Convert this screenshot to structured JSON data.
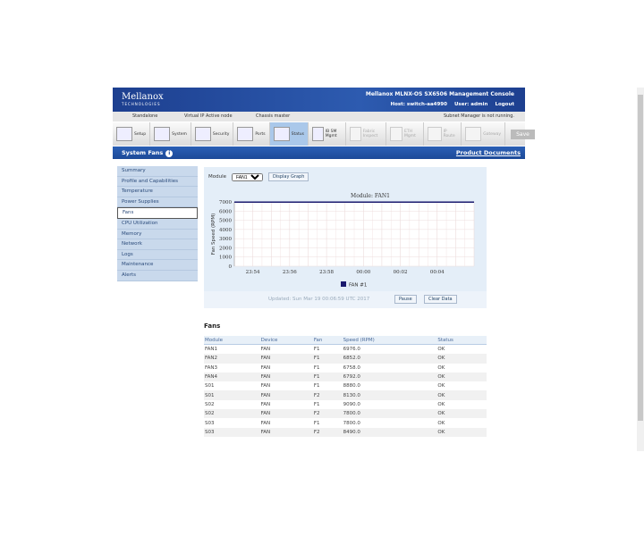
{
  "header": {
    "logo": "Mellanox",
    "logo_sub": "TECHNOLOGIES",
    "console_title": "Mellanox MLNX-OS SX6506 Management Console",
    "host": "Host: switch-aa4990",
    "user": "User: admin",
    "logout": "Logout"
  },
  "status_bar": {
    "standalone": "Standalone",
    "vip": "Virtual IP Active node",
    "chassis": "Chassis master",
    "subnet": "Subnet Manager is not running."
  },
  "toolbar": {
    "items": [
      {
        "label": "Setup"
      },
      {
        "label": "System"
      },
      {
        "label": "Security"
      },
      {
        "label": "Ports"
      },
      {
        "label": "Status",
        "active": true
      },
      {
        "label": "IB SM Mgmt"
      },
      {
        "label": "Fabric Inspect",
        "disabled": true
      },
      {
        "label": "ETH Mgmt",
        "disabled": true
      },
      {
        "label": "IP Route",
        "disabled": true
      },
      {
        "label": "Gateway",
        "disabled": true
      }
    ],
    "save": "Save"
  },
  "page": {
    "title": "System Fans",
    "product_docs": "Product Documents"
  },
  "sidebar": {
    "items": [
      "Summary",
      "Profile and Capabilities",
      "Temperature",
      "Power Supplies",
      "Fans",
      "CPU Utilization",
      "Memory",
      "Network",
      "Logs",
      "Maintenance",
      "Alerts"
    ],
    "selected": "Fans"
  },
  "graph": {
    "module_label": "Module",
    "module_value": "FAN1",
    "display_graph": "Display Graph",
    "updated": "Updated: Sun Mar 19 00:06:59 UTC 2017",
    "pause": "Pause",
    "clear": "Clear Data"
  },
  "chart_data": {
    "type": "line",
    "title": "Module: FAN1",
    "ylabel": "Fan Speed (RPM)",
    "xlabel": "",
    "ylim": [
      0,
      7000
    ],
    "yticks": [
      "0",
      "1000",
      "2000",
      "3000",
      "4000",
      "5000",
      "6000",
      "7000"
    ],
    "xticks": [
      "23:54",
      "23:56",
      "23:58",
      "00:00",
      "00:02",
      "00:04"
    ],
    "grid": true,
    "legend": "bottom",
    "series": [
      {
        "name": "FAN #1",
        "color": "#1a1a6e",
        "x": [
          "23:53",
          "00:06"
        ],
        "values": [
          6976,
          6976
        ]
      }
    ]
  },
  "fans": {
    "title": "Fans",
    "columns": [
      "Module",
      "Device",
      "Fan",
      "Speed (RPM)",
      "Status"
    ],
    "rows": [
      [
        "FAN1",
        "FAN",
        "F1",
        "6976.0",
        "OK"
      ],
      [
        "FAN2",
        "FAN",
        "F1",
        "6852.0",
        "OK"
      ],
      [
        "FAN3",
        "FAN",
        "F1",
        "6758.0",
        "OK"
      ],
      [
        "FAN4",
        "FAN",
        "F1",
        "6792.0",
        "OK"
      ],
      [
        "S01",
        "FAN",
        "F1",
        "8880.0",
        "OK"
      ],
      [
        "S01",
        "FAN",
        "F2",
        "8130.0",
        "OK"
      ],
      [
        "S02",
        "FAN",
        "F1",
        "9090.0",
        "OK"
      ],
      [
        "S02",
        "FAN",
        "F2",
        "7800.0",
        "OK"
      ],
      [
        "S03",
        "FAN",
        "F1",
        "7800.0",
        "OK"
      ],
      [
        "S03",
        "FAN",
        "F2",
        "8490.0",
        "OK"
      ]
    ]
  }
}
